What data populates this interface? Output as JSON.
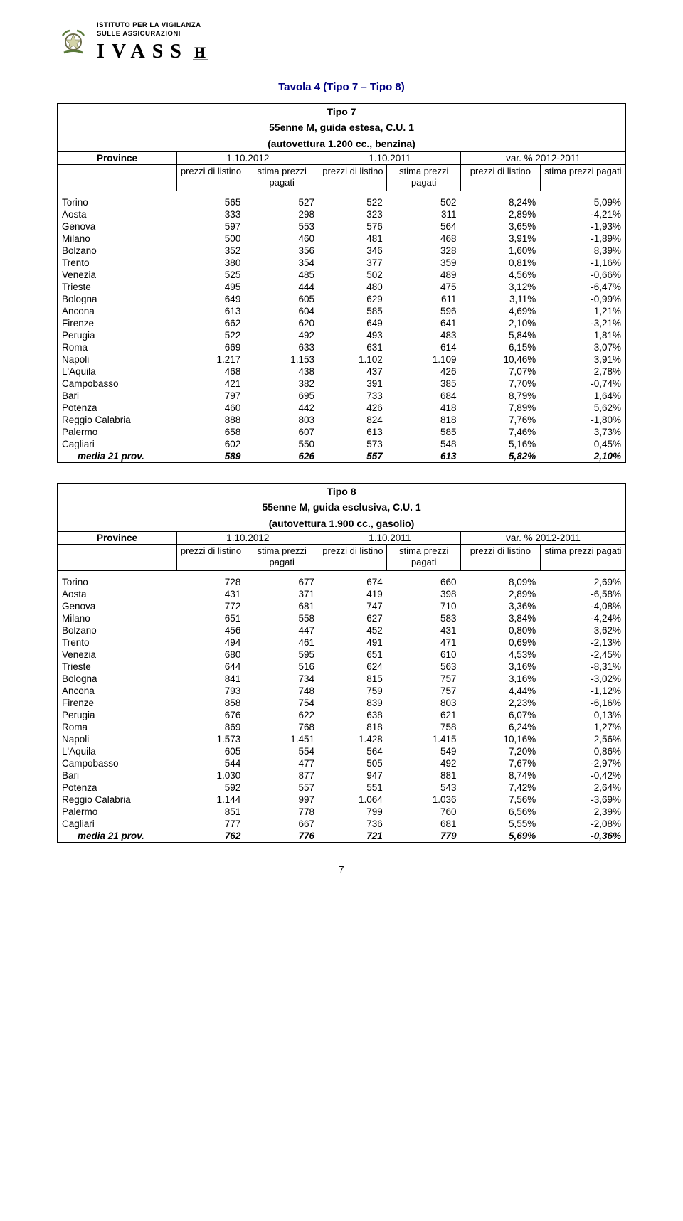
{
  "org": {
    "line1": "ISTITUTO PER LA VIGILANZA",
    "line2": "SULLE ASSICURAZIONI",
    "brand": "IVASS"
  },
  "title": "Tavola 4 (Tipo 7 – Tipo 8)",
  "page_number": "7",
  "col_headers": {
    "province": "Province",
    "date1": "1.10.2012",
    "date2": "1.10.2011",
    "var": "var. % 2012-2011",
    "prezzi": "prezzi di listino",
    "stima": "stima prezzi pagati"
  },
  "table1": {
    "type_line": "Tipo 7",
    "desc_line": "55enne M, guida estesa, C.U. 1",
    "car_line": "(autovettura 1.200 cc., benzina)",
    "rows": [
      [
        "Torino",
        "565",
        "527",
        "522",
        "502",
        "8,24%",
        "5,09%"
      ],
      [
        "Aosta",
        "333",
        "298",
        "323",
        "311",
        "2,89%",
        "-4,21%"
      ],
      [
        "Genova",
        "597",
        "553",
        "576",
        "564",
        "3,65%",
        "-1,93%"
      ],
      [
        "Milano",
        "500",
        "460",
        "481",
        "468",
        "3,91%",
        "-1,89%"
      ],
      [
        "Bolzano",
        "352",
        "356",
        "346",
        "328",
        "1,60%",
        "8,39%"
      ],
      [
        "Trento",
        "380",
        "354",
        "377",
        "359",
        "0,81%",
        "-1,16%"
      ],
      [
        "Venezia",
        "525",
        "485",
        "502",
        "489",
        "4,56%",
        "-0,66%"
      ],
      [
        "Trieste",
        "495",
        "444",
        "480",
        "475",
        "3,12%",
        "-6,47%"
      ],
      [
        "Bologna",
        "649",
        "605",
        "629",
        "611",
        "3,11%",
        "-0,99%"
      ],
      [
        "Ancona",
        "613",
        "604",
        "585",
        "596",
        "4,69%",
        "1,21%"
      ],
      [
        "Firenze",
        "662",
        "620",
        "649",
        "641",
        "2,10%",
        "-3,21%"
      ],
      [
        "Perugia",
        "522",
        "492",
        "493",
        "483",
        "5,84%",
        "1,81%"
      ],
      [
        "Roma",
        "669",
        "633",
        "631",
        "614",
        "6,15%",
        "3,07%"
      ],
      [
        "Napoli",
        "1.217",
        "1.153",
        "1.102",
        "1.109",
        "10,46%",
        "3,91%"
      ],
      [
        "L'Aquila",
        "468",
        "438",
        "437",
        "426",
        "7,07%",
        "2,78%"
      ],
      [
        "Campobasso",
        "421",
        "382",
        "391",
        "385",
        "7,70%",
        "-0,74%"
      ],
      [
        "Bari",
        "797",
        "695",
        "733",
        "684",
        "8,79%",
        "1,64%"
      ],
      [
        "Potenza",
        "460",
        "442",
        "426",
        "418",
        "7,89%",
        "5,62%"
      ],
      [
        "Reggio Calabria",
        "888",
        "803",
        "824",
        "818",
        "7,76%",
        "-1,80%"
      ],
      [
        "Palermo",
        "658",
        "607",
        "613",
        "585",
        "7,46%",
        "3,73%"
      ],
      [
        "Cagliari",
        "602",
        "550",
        "573",
        "548",
        "5,16%",
        "0,45%"
      ]
    ],
    "media": [
      "media 21 prov.",
      "589",
      "626",
      "557",
      "613",
      "5,82%",
      "2,10%"
    ]
  },
  "table2": {
    "type_line": "Tipo 8",
    "desc_line": "55enne M, guida esclusiva, C.U. 1",
    "car_line": "(autovettura 1.900 cc., gasolio)",
    "rows": [
      [
        "Torino",
        "728",
        "677",
        "674",
        "660",
        "8,09%",
        "2,69%"
      ],
      [
        "Aosta",
        "431",
        "371",
        "419",
        "398",
        "2,89%",
        "-6,58%"
      ],
      [
        "Genova",
        "772",
        "681",
        "747",
        "710",
        "3,36%",
        "-4,08%"
      ],
      [
        "Milano",
        "651",
        "558",
        "627",
        "583",
        "3,84%",
        "-4,24%"
      ],
      [
        "Bolzano",
        "456",
        "447",
        "452",
        "431",
        "0,80%",
        "3,62%"
      ],
      [
        "Trento",
        "494",
        "461",
        "491",
        "471",
        "0,69%",
        "-2,13%"
      ],
      [
        "Venezia",
        "680",
        "595",
        "651",
        "610",
        "4,53%",
        "-2,45%"
      ],
      [
        "Trieste",
        "644",
        "516",
        "624",
        "563",
        "3,16%",
        "-8,31%"
      ],
      [
        "Bologna",
        "841",
        "734",
        "815",
        "757",
        "3,16%",
        "-3,02%"
      ],
      [
        "Ancona",
        "793",
        "748",
        "759",
        "757",
        "4,44%",
        "-1,12%"
      ],
      [
        "Firenze",
        "858",
        "754",
        "839",
        "803",
        "2,23%",
        "-6,16%"
      ],
      [
        "Perugia",
        "676",
        "622",
        "638",
        "621",
        "6,07%",
        "0,13%"
      ],
      [
        "Roma",
        "869",
        "768",
        "818",
        "758",
        "6,24%",
        "1,27%"
      ],
      [
        "Napoli",
        "1.573",
        "1.451",
        "1.428",
        "1.415",
        "10,16%",
        "2,56%"
      ],
      [
        "L'Aquila",
        "605",
        "554",
        "564",
        "549",
        "7,20%",
        "0,86%"
      ],
      [
        "Campobasso",
        "544",
        "477",
        "505",
        "492",
        "7,67%",
        "-2,97%"
      ],
      [
        "Bari",
        "1.030",
        "877",
        "947",
        "881",
        "8,74%",
        "-0,42%"
      ],
      [
        "Potenza",
        "592",
        "557",
        "551",
        "543",
        "7,42%",
        "2,64%"
      ],
      [
        "Reggio Calabria",
        "1.144",
        "997",
        "1.064",
        "1.036",
        "7,56%",
        "-3,69%"
      ],
      [
        "Palermo",
        "851",
        "778",
        "799",
        "760",
        "6,56%",
        "2,39%"
      ],
      [
        "Cagliari",
        "777",
        "667",
        "736",
        "681",
        "5,55%",
        "-2,08%"
      ]
    ],
    "media": [
      "media 21 prov.",
      "762",
      "776",
      "721",
      "779",
      "5,69%",
      "-0,36%"
    ]
  }
}
